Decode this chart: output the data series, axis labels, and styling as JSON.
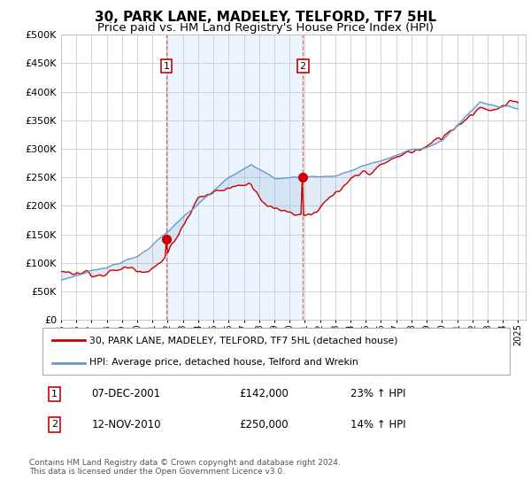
{
  "title": "30, PARK LANE, MADELEY, TELFORD, TF7 5HL",
  "subtitle": "Price paid vs. HM Land Registry's House Price Index (HPI)",
  "ytick_values": [
    0,
    50000,
    100000,
    150000,
    200000,
    250000,
    300000,
    350000,
    400000,
    450000,
    500000
  ],
  "xlim_start": 1995.0,
  "xlim_end": 2025.5,
  "ylim_max": 500000,
  "line1_color": "#cc0000",
  "line2_color": "#6699cc",
  "fill_color": "#aaccee",
  "vline_color": "#cc4444",
  "vspan_color": "#ddeeff",
  "marker1_date": 2001.92,
  "marker1_value": 142000,
  "marker2_date": 2010.87,
  "marker2_value": 250000,
  "vline1_x": 2001.92,
  "vline2_x": 2010.87,
  "legend_line1": "30, PARK LANE, MADELEY, TELFORD, TF7 5HL (detached house)",
  "legend_line2": "HPI: Average price, detached house, Telford and Wrekin",
  "annotation1_date": "07-DEC-2001",
  "annotation1_price": "£142,000",
  "annotation1_hpi": "23% ↑ HPI",
  "annotation2_date": "12-NOV-2010",
  "annotation2_price": "£250,000",
  "annotation2_hpi": "14% ↑ HPI",
  "footer": "Contains HM Land Registry data © Crown copyright and database right 2024.\nThis data is licensed under the Open Government Licence v3.0.",
  "background_color": "#ffffff",
  "grid_color": "#cccccc",
  "title_fontsize": 11,
  "subtitle_fontsize": 9.5
}
